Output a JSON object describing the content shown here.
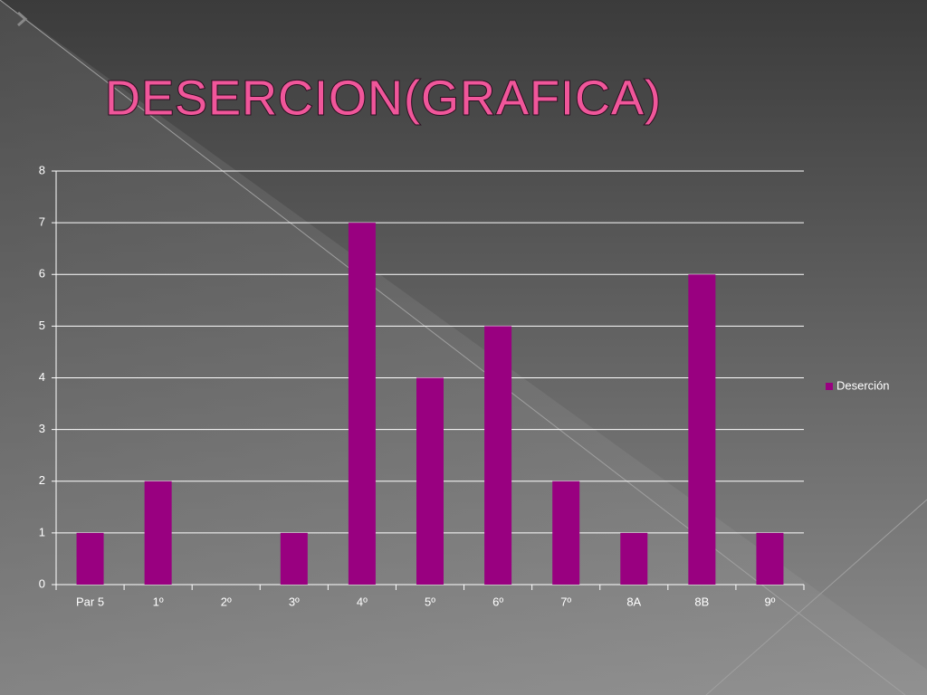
{
  "chart_data": {
    "type": "bar",
    "title": "DESERCION(GRAFICA)",
    "categories": [
      "Par 5",
      "1º",
      "2º",
      "3º",
      "4º",
      "5º",
      "6º",
      "7º",
      "8A",
      "8B",
      "9º"
    ],
    "series": [
      {
        "name": "Deserción",
        "color": "#990080",
        "values": [
          1,
          2,
          0,
          1,
          7,
          4,
          5,
          2,
          1,
          6,
          1
        ]
      }
    ],
    "ylim": [
      0,
      8
    ],
    "yticks": [
      0,
      1,
      2,
      3,
      4,
      5,
      6,
      7,
      8
    ],
    "grid": true,
    "legend": "right"
  }
}
